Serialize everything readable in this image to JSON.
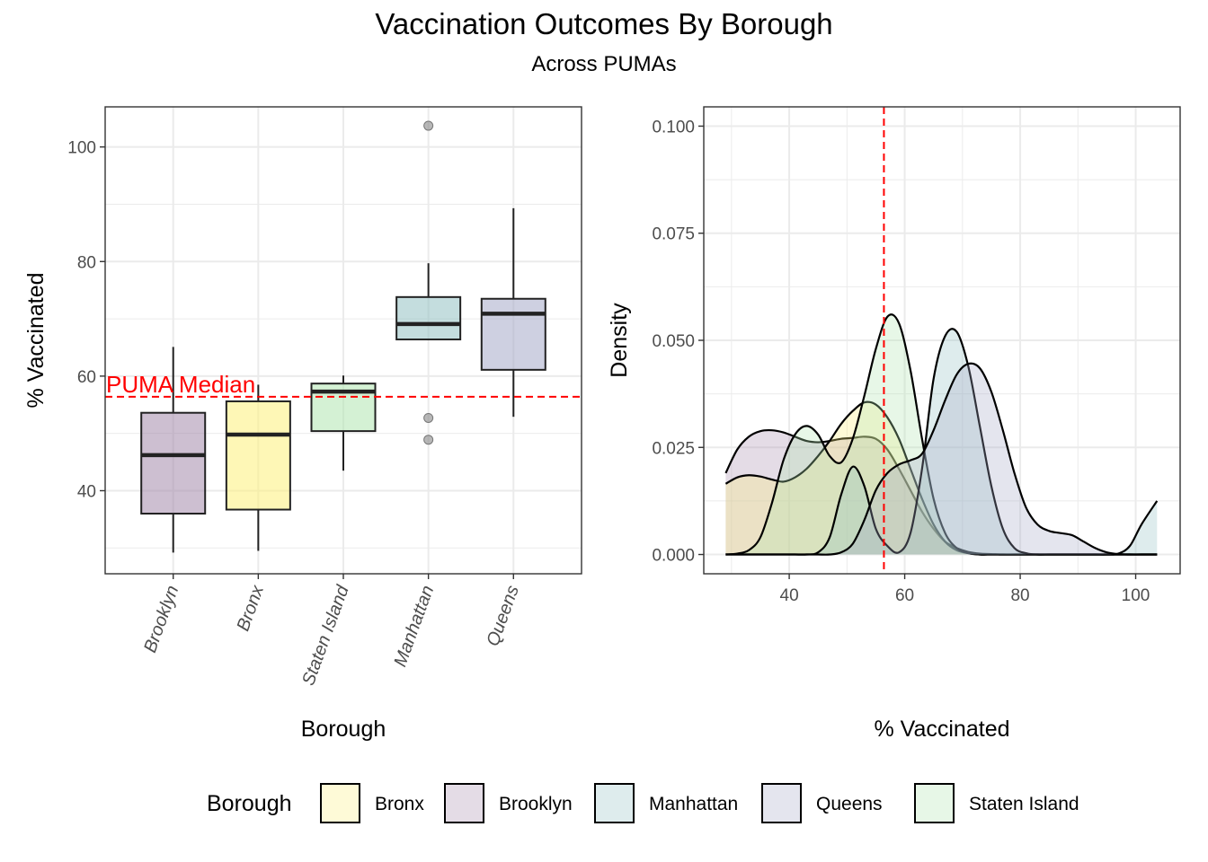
{
  "title": "Vaccination Outcomes By Borough",
  "subtitle": "Across PUMAs",
  "colors": {
    "Bronx": "#fdf07a",
    "Brooklyn": "#a48aac",
    "Manhattan": "#93c1c3",
    "Queens": "#a6aac8",
    "Staten Island": "#b0e6b0",
    "median_line": "#ff0000"
  },
  "legend": {
    "title": "Borough",
    "items": [
      "Bronx",
      "Brooklyn",
      "Manhattan",
      "Queens",
      "Staten Island"
    ]
  },
  "chart_data": [
    {
      "type": "box",
      "xlabel": "Borough",
      "ylabel": "% Vaccinated",
      "ylim": [
        25.5,
        107
      ],
      "yticks": [
        40,
        60,
        80,
        100
      ],
      "categories": [
        "Brooklyn",
        "Bronx",
        "Staten Island",
        "Manhattan",
        "Queens"
      ],
      "boxes": [
        {
          "name": "Brooklyn",
          "whisker_low": 29.2,
          "q1": 36.0,
          "median": 46.2,
          "q3": 53.6,
          "whisker_high": 65.1,
          "outliers": []
        },
        {
          "name": "Bronx",
          "whisker_low": 29.5,
          "q1": 36.7,
          "median": 49.8,
          "q3": 55.6,
          "whisker_high": 58.5,
          "outliers": []
        },
        {
          "name": "Staten Island",
          "whisker_low": 43.5,
          "q1": 50.4,
          "median": 57.3,
          "q3": 58.7,
          "whisker_high": 60.1,
          "outliers": []
        },
        {
          "name": "Manhattan",
          "whisker_low": 66.4,
          "q1": 66.4,
          "median": 69.1,
          "q3": 73.8,
          "whisker_high": 79.7,
          "outliers": [
            103.7,
            52.7,
            48.9
          ]
        },
        {
          "name": "Queens",
          "whisker_low": 52.9,
          "q1": 61.1,
          "median": 70.9,
          "q3": 73.5,
          "whisker_high": 89.3,
          "outliers": []
        }
      ],
      "reference_line": {
        "value": 56.4,
        "label": "PUMA Median"
      },
      "grid": true
    },
    {
      "type": "density",
      "xlabel": "% Vaccinated",
      "ylabel": "Density",
      "xlim": [
        25.2,
        107.7
      ],
      "ylim": [
        -0.0045,
        0.1045
      ],
      "xticks": [
        40,
        60,
        80,
        100
      ],
      "yticks": [
        0,
        0.025,
        0.05,
        0.075,
        0.1
      ],
      "ytick_labels": [
        "0.000",
        "0.025",
        "0.050",
        "0.075",
        "0.100"
      ],
      "x_points": [
        29,
        31,
        33,
        35,
        37,
        39,
        41,
        43,
        45,
        47,
        49,
        51,
        53,
        55,
        57,
        59,
        61,
        63,
        65,
        67,
        69,
        71,
        73,
        75,
        77,
        79,
        81,
        83,
        85,
        87,
        89,
        91,
        93,
        95,
        97,
        99,
        101,
        103.7
      ],
      "series": [
        {
          "name": "Brooklyn",
          "values": [
            0.019,
            0.0245,
            0.0275,
            0.0288,
            0.029,
            0.0285,
            0.0275,
            0.0265,
            0.0262,
            0.0265,
            0.027,
            0.0272,
            0.0275,
            0.027,
            0.0245,
            0.02,
            0.015,
            0.01,
            0.006,
            0.003,
            0.0015,
            0.0006,
            0.0002,
            0.0001,
            0,
            0,
            0,
            0,
            0,
            0,
            0,
            0,
            0,
            0,
            0,
            0,
            0,
            0
          ]
        },
        {
          "name": "Bronx",
          "values": [
            0.0165,
            0.018,
            0.0185,
            0.0182,
            0.0175,
            0.017,
            0.018,
            0.02,
            0.023,
            0.0265,
            0.0305,
            0.0335,
            0.0355,
            0.035,
            0.032,
            0.027,
            0.02,
            0.013,
            0.007,
            0.003,
            0.001,
            0.0003,
            0,
            0,
            0,
            0,
            0,
            0,
            0,
            0,
            0,
            0,
            0,
            0,
            0,
            0,
            0,
            0
          ]
        },
        {
          "name": "Staten Island",
          "values": [
            0,
            0.0002,
            0.001,
            0.004,
            0.012,
            0.022,
            0.028,
            0.03,
            0.028,
            0.023,
            0.0215,
            0.027,
            0.037,
            0.048,
            0.0555,
            0.054,
            0.043,
            0.027,
            0.013,
            0.005,
            0.0015,
            0.0003,
            0,
            0,
            0,
            0,
            0,
            0,
            0,
            0,
            0,
            0,
            0,
            0,
            0,
            0,
            0,
            0
          ]
        },
        {
          "name": "Manhattan",
          "values": [
            0,
            0,
            0,
            0,
            0,
            0,
            0,
            0,
            0.0005,
            0.004,
            0.014,
            0.0205,
            0.016,
            0.006,
            0.002,
            0.0005,
            0.005,
            0.02,
            0.041,
            0.051,
            0.052,
            0.044,
            0.03,
            0.016,
            0.006,
            0.0015,
            0.0003,
            0,
            0,
            0,
            0,
            0,
            0,
            0,
            0.0002,
            0.002,
            0.007,
            0.0125
          ]
        },
        {
          "name": "Queens",
          "values": [
            0,
            0,
            0,
            0,
            0,
            0,
            0,
            0,
            0,
            0,
            0.0005,
            0.0025,
            0.008,
            0.015,
            0.019,
            0.021,
            0.022,
            0.0235,
            0.029,
            0.036,
            0.042,
            0.0445,
            0.0435,
            0.038,
            0.029,
            0.019,
            0.011,
            0.007,
            0.0055,
            0.005,
            0.0045,
            0.003,
            0.0015,
            0.0005,
            0.0001,
            0,
            0,
            0
          ]
        }
      ],
      "reference_line": {
        "value": 56.4
      },
      "grid": true
    }
  ]
}
